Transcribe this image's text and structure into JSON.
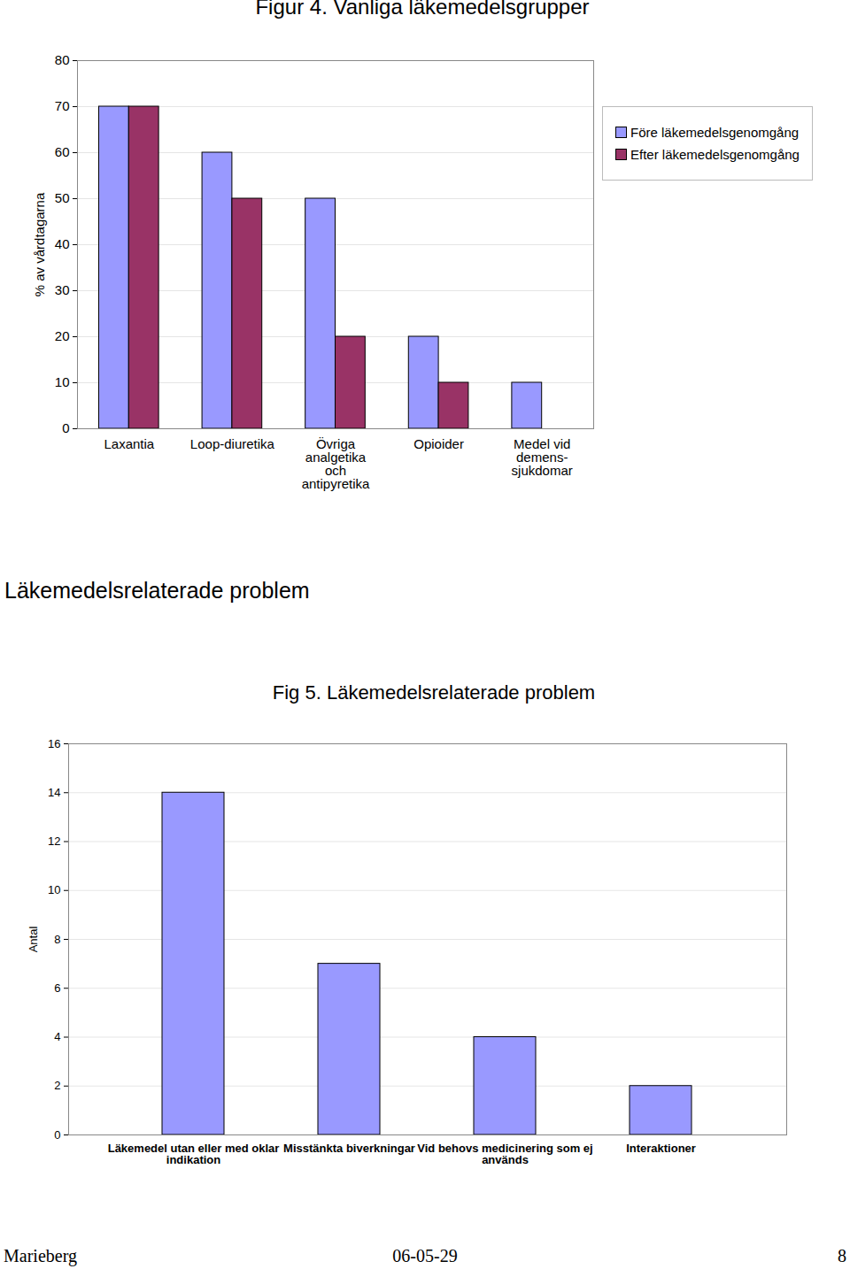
{
  "chart_data": [
    {
      "type": "bar",
      "title": "Figur 4. Vanliga läkemedelsgrupper",
      "ylabel": "% av vårdtagarna",
      "categories": [
        "Laxantia",
        "Loop-diuretika",
        "Övriga\nanalgetika\noch\nantipyretika",
        "Opioider",
        "Medel vid\ndemens-\nsjukdomar"
      ],
      "series": [
        {
          "name": "Före läkemedelsgenomgång",
          "color": "#9999ff",
          "values": [
            70,
            60,
            50,
            20,
            10
          ]
        },
        {
          "name": "Efter läkemedelsgenomgång",
          "color": "#993366",
          "values": [
            70,
            50,
            20,
            10,
            0
          ]
        }
      ],
      "ylim": [
        0,
        80
      ],
      "yticks": [
        0,
        10,
        20,
        30,
        40,
        50,
        60,
        70,
        80
      ],
      "grid": true,
      "legend": "right"
    },
    {
      "type": "bar",
      "title": "Fig 5. Läkemedelsrelaterade problem",
      "ylabel": "Antal",
      "categories": [
        "Läkemedel utan eller med oklar\nindikation",
        "Misstänkta biverkningar",
        "Vid behovs medicinering som ej\nanvänds",
        "Interaktioner"
      ],
      "values": [
        14,
        7,
        4,
        2
      ],
      "color": "#9999ff",
      "ylim": [
        0,
        16
      ],
      "yticks": [
        0,
        2,
        4,
        6,
        8,
        10,
        12,
        14,
        16
      ],
      "grid": true
    }
  ],
  "heading": "Läkemedelsrelaterade problem",
  "footer": {
    "left": "Marieberg",
    "center": "06-05-29",
    "right": "8"
  }
}
